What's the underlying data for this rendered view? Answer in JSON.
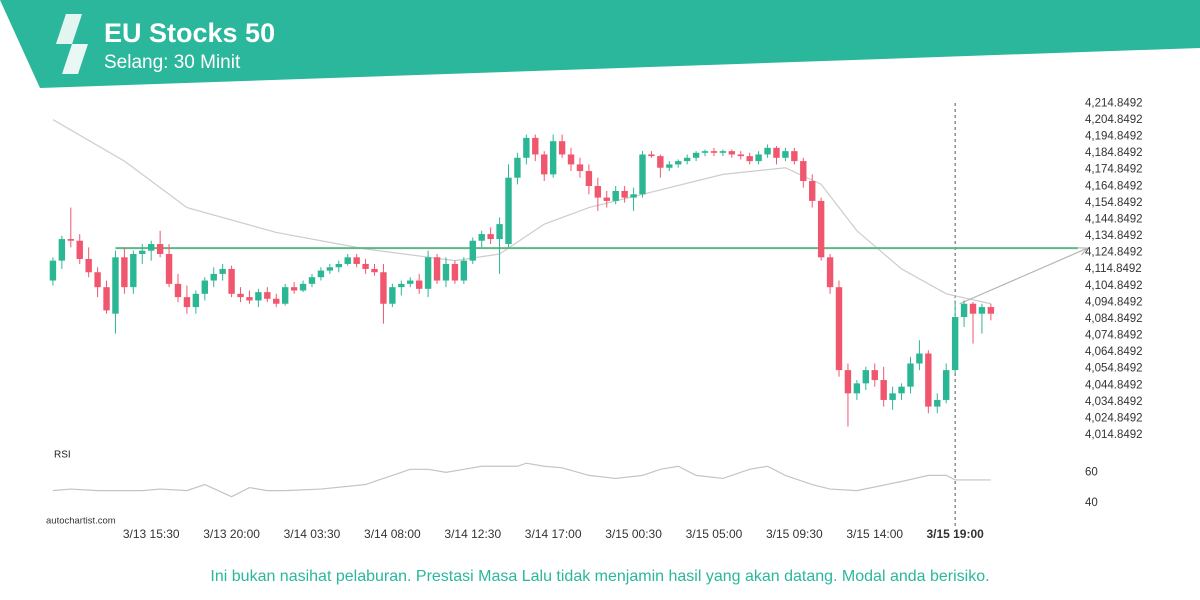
{
  "header": {
    "title": "EU Stocks 50",
    "subtitle": "Selang: 30 Minit"
  },
  "footer": {
    "disclaimer": "Ini bukan nasihat pelaburan. Prestasi Masa Lalu tidak menjamin hasil yang akan datang. Modal anda berisiko.",
    "source": "autochartist.com"
  },
  "chart_data": {
    "type": "candlestick",
    "up_color": "#2cb794",
    "down_color": "#f0566e",
    "open": [
      4108,
      4120,
      4133,
      4132,
      4121,
      4113,
      4104,
      4088,
      4122,
      4104,
      4124,
      4126,
      4130,
      4124,
      4106,
      4098,
      4092,
      4100,
      4108,
      4112,
      4115,
      4100,
      4098,
      4096,
      4101,
      4097,
      4094,
      4104,
      4102,
      4106,
      4110,
      4114,
      4116,
      4118,
      4122,
      4118,
      4115,
      4113,
      4094,
      4104,
      4106,
      4108,
      4103,
      4122,
      4108,
      4118,
      4108,
      4120,
      4132,
      4136,
      4133,
      4130,
      4170,
      4182,
      4194,
      4184,
      4172,
      4192,
      4184,
      4178,
      4174,
      4165,
      4158,
      4156,
      4162,
      4158,
      4160,
      4184,
      4183,
      4176,
      4178,
      4180,
      4182,
      4185,
      4186,
      4185,
      4186,
      4184,
      4183,
      4180,
      4184,
      4188,
      4182,
      4186,
      4180,
      4168,
      4156,
      4122,
      4104,
      4054,
      4040,
      4046,
      4054,
      4048,
      4036,
      4040,
      4044,
      4058,
      4064,
      4032,
      4036,
      4054,
      4086,
      4094,
      4088,
      4092
    ],
    "high": [
      4122,
      4135,
      4152,
      4136,
      4128,
      4116,
      4108,
      4126,
      4128,
      4126,
      4130,
      4132,
      4138,
      4130,
      4112,
      4105,
      4102,
      4110,
      4116,
      4118,
      4117,
      4104,
      4102,
      4103,
      4104,
      4100,
      4106,
      4107,
      4108,
      4112,
      4116,
      4118,
      4120,
      4124,
      4124,
      4121,
      4118,
      4118,
      4106,
      4108,
      4110,
      4112,
      4126,
      4124,
      4122,
      4120,
      4122,
      4134,
      4138,
      4140,
      4146,
      4178,
      4185,
      4196,
      4196,
      4186,
      4196,
      4196,
      4188,
      4182,
      4178,
      4170,
      4162,
      4165,
      4165,
      4164,
      4186,
      4186,
      4184,
      4180,
      4181,
      4184,
      4186,
      4187,
      4188,
      4187,
      4187,
      4186,
      4185,
      4186,
      4190,
      4189,
      4188,
      4188,
      4182,
      4172,
      4158,
      4124,
      4108,
      4058,
      4048,
      4056,
      4058,
      4056,
      4044,
      4046,
      4062,
      4072,
      4066,
      4040,
      4058,
      4096,
      4096,
      4095,
      4094,
      4094
    ],
    "low": [
      4105,
      4115,
      4128,
      4118,
      4110,
      4098,
      4088,
      4076,
      4100,
      4100,
      4118,
      4120,
      4122,
      4104,
      4095,
      4088,
      4088,
      4096,
      4104,
      4108,
      4098,
      4095,
      4094,
      4092,
      4095,
      4092,
      4093,
      4100,
      4101,
      4104,
      4108,
      4112,
      4113,
      4117,
      4116,
      4112,
      4111,
      4082,
      4092,
      4099,
      4104,
      4100,
      4098,
      4106,
      4104,
      4106,
      4106,
      4118,
      4128,
      4130,
      4112,
      4128,
      4166,
      4178,
      4180,
      4168,
      4170,
      4182,
      4174,
      4170,
      4160,
      4150,
      4152,
      4154,
      4155,
      4150,
      4158,
      4182,
      4170,
      4174,
      4176,
      4178,
      4180,
      4183,
      4183,
      4183,
      4182,
      4181,
      4178,
      4178,
      4182,
      4178,
      4180,
      4178,
      4164,
      4152,
      4120,
      4100,
      4050,
      4020,
      4036,
      4042,
      4044,
      4032,
      4030,
      4036,
      4040,
      4054,
      4028,
      4028,
      4034,
      4052,
      4080,
      4070,
      4076,
      4084
    ],
    "close": [
      4120,
      4133,
      4132,
      4121,
      4113,
      4104,
      4090,
      4122,
      4104,
      4124,
      4126,
      4130,
      4124,
      4106,
      4098,
      4092,
      4100,
      4108,
      4112,
      4115,
      4100,
      4098,
      4096,
      4101,
      4097,
      4094,
      4104,
      4102,
      4106,
      4110,
      4114,
      4116,
      4118,
      4122,
      4118,
      4115,
      4113,
      4094,
      4104,
      4106,
      4108,
      4103,
      4122,
      4108,
      4118,
      4108,
      4120,
      4132,
      4136,
      4133,
      4142,
      4170,
      4182,
      4194,
      4184,
      4172,
      4192,
      4184,
      4178,
      4174,
      4165,
      4158,
      4156,
      4162,
      4158,
      4160,
      4184,
      4183,
      4176,
      4178,
      4180,
      4182,
      4185,
      4186,
      4185,
      4186,
      4184,
      4183,
      4180,
      4184,
      4188,
      4182,
      4186,
      4180,
      4168,
      4156,
      4122,
      4104,
      4054,
      4040,
      4046,
      4054,
      4048,
      4036,
      4040,
      4044,
      4058,
      4064,
      4032,
      4036,
      4054,
      4086,
      4094,
      4088,
      4092,
      4088
    ],
    "moving_average": {
      "color": "#cccccc",
      "x": [
        0,
        8,
        15,
        25,
        35,
        45,
        50,
        55,
        60,
        66,
        75,
        82,
        86,
        90,
        95,
        100,
        105
      ],
      "values": [
        4205,
        4180,
        4152,
        4137,
        4127,
        4120,
        4124,
        4142,
        4152,
        4160,
        4172,
        4176,
        4166,
        4138,
        4115,
        4100,
        4094
      ]
    },
    "resistance": {
      "value": 4127.5,
      "start": 7,
      "color": "#5fb784"
    },
    "forecast": {
      "x": [
        101.5,
        115.8
      ],
      "values": [
        4094,
        4127.5
      ],
      "color": "#b5b5b5"
    },
    "cursor_x": 101,
    "xlim": [
      -1,
      110.5
    ],
    "xticks": [
      {
        "value": 11,
        "label": "3/13 15:30"
      },
      {
        "value": 20,
        "label": "3/13 20:00"
      },
      {
        "value": 29,
        "label": "3/14 03:30"
      },
      {
        "value": 38,
        "label": "3/14 08:00"
      },
      {
        "value": 47,
        "label": "3/14 12:30"
      },
      {
        "value": 56,
        "label": "3/14 17:00"
      },
      {
        "value": 65,
        "label": "3/15 00:30"
      },
      {
        "value": 74,
        "label": "3/15 05:00"
      },
      {
        "value": 83,
        "label": "3/15 09:30"
      },
      {
        "value": 92,
        "label": "3/15 14:00"
      },
      {
        "value": 101,
        "label": "3/15 19:00"
      }
    ],
    "ylim": [
      4008.8492,
      4219.8492
    ],
    "yticks": [
      {
        "value": 4014.8492,
        "label": "4,014.8492"
      },
      {
        "value": 4024.8492,
        "label": "4,024.8492"
      },
      {
        "value": 4034.8492,
        "label": "4,034.8492"
      },
      {
        "value": 4044.8492,
        "label": "4,044.8492"
      },
      {
        "value": 4054.8492,
        "label": "4,054.8492"
      },
      {
        "value": 4064.8492,
        "label": "4,064.8492"
      },
      {
        "value": 4074.8492,
        "label": "4,074.8492"
      },
      {
        "value": 4084.8492,
        "label": "4,084.8492"
      },
      {
        "value": 4094.8492,
        "label": "4,094.8492"
      },
      {
        "value": 4104.8492,
        "label": "4,104.8492"
      },
      {
        "value": 4114.8492,
        "label": "4,114.8492"
      },
      {
        "value": 4124.8492,
        "label": "4,124.8492"
      },
      {
        "value": 4134.8492,
        "label": "4,134.8492"
      },
      {
        "value": 4144.8492,
        "label": "4,144.8492"
      },
      {
        "value": 4154.8492,
        "label": "4,154.8492"
      },
      {
        "value": 4164.8492,
        "label": "4,164.8492"
      },
      {
        "value": 4174.8492,
        "label": "4,174.8492"
      },
      {
        "value": 4184.8492,
        "label": "4,184.8492"
      },
      {
        "value": 4194.8492,
        "label": "4,194.8492"
      },
      {
        "value": 4204.8492,
        "label": "4,204.8492"
      },
      {
        "value": 4214.8492,
        "label": "4,214.8492"
      }
    ],
    "rsi": {
      "label": "RSI",
      "color": "#c4c4c4",
      "x": [
        0,
        2,
        5,
        10,
        12,
        15,
        17,
        20,
        22,
        24,
        26,
        30,
        35,
        38,
        40,
        42,
        44,
        46,
        48,
        52,
        53,
        55,
        57,
        60,
        63,
        66,
        68,
        70,
        72,
        75,
        78,
        80,
        82,
        85,
        87,
        90,
        95,
        98,
        100,
        101,
        105
      ],
      "values": [
        48,
        49,
        48,
        48,
        49,
        48,
        52,
        44,
        50,
        48,
        48,
        49,
        52,
        58,
        62,
        62,
        60,
        62,
        64,
        64,
        66,
        64,
        63,
        58,
        56,
        58,
        62,
        64,
        58,
        56,
        62,
        64,
        58,
        52,
        49,
        48,
        54,
        58,
        58,
        55,
        55
      ],
      "ylim": [
        30,
        76
      ],
      "yticks": [
        60,
        40
      ]
    }
  }
}
